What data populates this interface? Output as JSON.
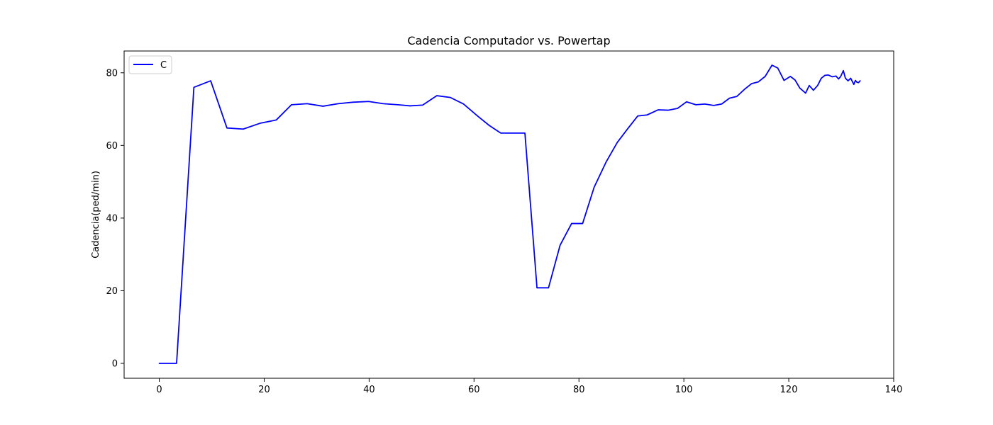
{
  "chart_data": {
    "type": "line",
    "title": "Cadencia Computador vs. Powertap",
    "xlabel": "",
    "ylabel": "Cadencia(ped/min)",
    "xlim": [
      -6.7,
      140
    ],
    "ylim": [
      -4.1,
      86
    ],
    "xticks": [
      0,
      20,
      40,
      60,
      80,
      100,
      120,
      140
    ],
    "yticks": [
      0,
      20,
      40,
      60,
      80
    ],
    "grid": false,
    "legend_position": "top-left",
    "series": [
      {
        "name": "C",
        "color": "#0000ff",
        "x": [
          0,
          3.3,
          6.6,
          9.8,
          12.9,
          16.0,
          19.2,
          22.3,
          25.2,
          28.2,
          31.2,
          34.1,
          36.9,
          39.9,
          42.7,
          45.5,
          47.8,
          50.2,
          52.9,
          55.5,
          58.0,
          60.6,
          62.9,
          65.1,
          67.3,
          69.7,
          72.0,
          74.2,
          76.4,
          78.6,
          80.7,
          82.9,
          85.2,
          87.3,
          89.3,
          91.2,
          93.0,
          95.1,
          97.0,
          98.8,
          100.5,
          102.3,
          104.0,
          105.7,
          107.2,
          108.7,
          110.1,
          111.6,
          112.9,
          114.2,
          115.5,
          116.8,
          117.9,
          119.1,
          120.3,
          121.2,
          122.1,
          123.2,
          123.9,
          124.7,
          125.5,
          126.2,
          126.9,
          127.5,
          128.3,
          129.0,
          129.5,
          129.9,
          130.4,
          130.8,
          131.3,
          131.8,
          132.4,
          132.7,
          133.0,
          133.3,
          133.6
        ],
        "values": [
          0,
          0,
          76,
          77.8,
          64.8,
          64.5,
          66.1,
          67.0,
          71.2,
          71.5,
          70.8,
          71.5,
          71.9,
          72.1,
          71.5,
          71.2,
          70.9,
          71.1,
          73.7,
          73.2,
          71.4,
          68.2,
          65.5,
          63.4,
          63.4,
          63.4,
          20.8,
          20.8,
          32.5,
          38.5,
          38.5,
          48.5,
          55.5,
          60.8,
          64.6,
          68.1,
          68.4,
          69.8,
          69.7,
          70.2,
          72.0,
          71.2,
          71.4,
          71.0,
          71.4,
          73.0,
          73.5,
          75.5,
          77.0,
          77.5,
          79.0,
          82.1,
          81.3,
          77.9,
          79.0,
          78.0,
          75.8,
          74.4,
          76.5,
          75.2,
          76.5,
          78.5,
          79.3,
          79.4,
          78.9,
          79.1,
          78.3,
          79.0,
          80.6,
          78.5,
          77.8,
          78.5,
          76.8,
          77.9,
          77.4,
          77.3,
          77.8
        ]
      }
    ]
  }
}
